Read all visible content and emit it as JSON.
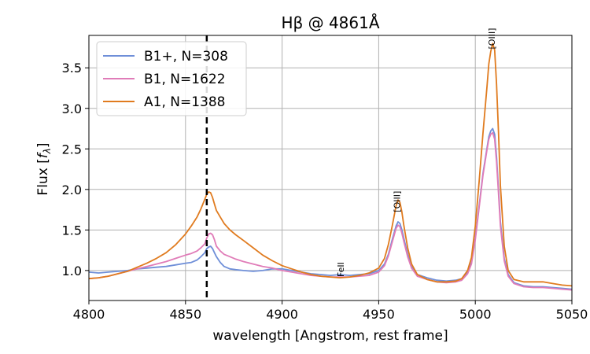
{
  "chart_data": {
    "type": "line",
    "title": "Hβ @ 4861Å",
    "xlabel": "wavelength [Angstrom, rest frame]",
    "ylabel": "Flux [f_λ]",
    "xlim": [
      4800,
      5050
    ],
    "ylim": [
      0.63,
      3.9
    ],
    "xticks": [
      4800,
      4850,
      4900,
      4950,
      5000,
      5050
    ],
    "yticks": [
      1.0,
      1.5,
      2.0,
      2.5,
      3.0,
      3.5
    ],
    "grid": true,
    "legend_position": "top-left",
    "reference_line": {
      "x": 4861,
      "style": "dashed",
      "color": "#000000"
    },
    "annotations": [
      {
        "text": "FeII",
        "x": 4932,
        "y": 0.92
      },
      {
        "text": "[OIII]",
        "x": 4961,
        "y": 1.72
      },
      {
        "text": "[OIII]",
        "x": 5010,
        "y": 3.73
      }
    ],
    "series": [
      {
        "name": "B1+, N=308",
        "color": "#6f8fd8",
        "x": [
          4800,
          4805,
          4810,
          4815,
          4820,
          4825,
          4830,
          4835,
          4840,
          4845,
          4850,
          4853,
          4856,
          4858,
          4860,
          4861,
          4862,
          4863,
          4864,
          4865,
          4866,
          4868,
          4870,
          4873,
          4876,
          4880,
          4885,
          4890,
          4895,
          4900,
          4905,
          4910,
          4915,
          4920,
          4925,
          4930,
          4935,
          4940,
          4945,
          4950,
          4953,
          4955,
          4957,
          4959,
          4960,
          4961,
          4962,
          4963,
          4965,
          4967,
          4970,
          4975,
          4980,
          4985,
          4990,
          4993,
          4996,
          4998,
          5000,
          5002,
          5004,
          5006,
          5007,
          5008,
          5009,
          5010,
          5011,
          5012,
          5013,
          5015,
          5017,
          5020,
          5025,
          5030,
          5035,
          5040,
          5045,
          5050
        ],
        "values": [
          0.98,
          0.97,
          0.98,
          0.99,
          1.0,
          1.02,
          1.03,
          1.04,
          1.05,
          1.07,
          1.09,
          1.1,
          1.13,
          1.17,
          1.22,
          1.27,
          1.29,
          1.3,
          1.27,
          1.22,
          1.17,
          1.1,
          1.05,
          1.02,
          1.01,
          1.0,
          0.99,
          1.0,
          1.02,
          1.02,
          1.0,
          0.98,
          0.96,
          0.95,
          0.94,
          0.95,
          0.94,
          0.95,
          0.96,
          1.0,
          1.08,
          1.2,
          1.38,
          1.55,
          1.6,
          1.58,
          1.5,
          1.4,
          1.2,
          1.05,
          0.95,
          0.91,
          0.88,
          0.87,
          0.88,
          0.9,
          0.98,
          1.1,
          1.4,
          1.8,
          2.2,
          2.5,
          2.65,
          2.72,
          2.75,
          2.68,
          2.4,
          2.0,
          1.6,
          1.15,
          0.95,
          0.85,
          0.81,
          0.8,
          0.8,
          0.79,
          0.78,
          0.77
        ]
      },
      {
        "name": "B1, N=1622",
        "color": "#e07cb8",
        "x": [
          4800,
          4805,
          4810,
          4815,
          4820,
          4825,
          4830,
          4835,
          4840,
          4845,
          4850,
          4853,
          4856,
          4858,
          4860,
          4861,
          4862,
          4863,
          4864,
          4865,
          4866,
          4868,
          4870,
          4873,
          4876,
          4880,
          4885,
          4890,
          4895,
          4900,
          4905,
          4910,
          4915,
          4920,
          4925,
          4930,
          4935,
          4940,
          4945,
          4950,
          4953,
          4955,
          4957,
          4959,
          4960,
          4961,
          4962,
          4963,
          4965,
          4967,
          4970,
          4975,
          4980,
          4985,
          4990,
          4993,
          4996,
          4998,
          5000,
          5002,
          5004,
          5006,
          5007,
          5008,
          5009,
          5010,
          5011,
          5012,
          5013,
          5015,
          5017,
          5020,
          5025,
          5030,
          5035,
          5040,
          5045,
          5050
        ],
        "values": [
          0.9,
          0.91,
          0.93,
          0.96,
          0.99,
          1.02,
          1.05,
          1.08,
          1.11,
          1.15,
          1.19,
          1.21,
          1.24,
          1.28,
          1.33,
          1.4,
          1.45,
          1.46,
          1.44,
          1.38,
          1.3,
          1.24,
          1.2,
          1.17,
          1.14,
          1.11,
          1.08,
          1.05,
          1.03,
          1.0,
          0.98,
          0.96,
          0.94,
          0.93,
          0.92,
          0.92,
          0.92,
          0.93,
          0.94,
          0.98,
          1.06,
          1.18,
          1.35,
          1.52,
          1.56,
          1.54,
          1.46,
          1.36,
          1.17,
          1.03,
          0.93,
          0.89,
          0.86,
          0.85,
          0.86,
          0.88,
          0.96,
          1.08,
          1.38,
          1.78,
          2.18,
          2.48,
          2.62,
          2.68,
          2.7,
          2.62,
          2.34,
          1.95,
          1.55,
          1.12,
          0.93,
          0.84,
          0.8,
          0.79,
          0.79,
          0.78,
          0.77,
          0.76
        ]
      },
      {
        "name": "A1, N=1388",
        "color": "#e07b1f",
        "x": [
          4800,
          4805,
          4810,
          4815,
          4820,
          4825,
          4830,
          4835,
          4840,
          4845,
          4850,
          4853,
          4856,
          4858,
          4860,
          4861,
          4862,
          4863,
          4864,
          4865,
          4866,
          4868,
          4870,
          4873,
          4876,
          4880,
          4885,
          4890,
          4895,
          4900,
          4905,
          4910,
          4915,
          4920,
          4925,
          4930,
          4935,
          4940,
          4945,
          4950,
          4953,
          4955,
          4957,
          4959,
          4960,
          4961,
          4962,
          4963,
          4965,
          4967,
          4970,
          4975,
          4980,
          4985,
          4990,
          4993,
          4996,
          4998,
          5000,
          5002,
          5004,
          5006,
          5007,
          5008,
          5009,
          5010,
          5011,
          5012,
          5013,
          5015,
          5017,
          5020,
          5025,
          5030,
          5035,
          5040,
          5045,
          5050
        ],
        "values": [
          0.9,
          0.91,
          0.93,
          0.96,
          0.99,
          1.04,
          1.09,
          1.15,
          1.22,
          1.32,
          1.45,
          1.55,
          1.66,
          1.76,
          1.88,
          1.94,
          1.97,
          1.96,
          1.9,
          1.82,
          1.74,
          1.66,
          1.58,
          1.5,
          1.44,
          1.37,
          1.28,
          1.19,
          1.12,
          1.06,
          1.02,
          0.98,
          0.95,
          0.93,
          0.92,
          0.91,
          0.92,
          0.94,
          0.97,
          1.03,
          1.15,
          1.32,
          1.55,
          1.8,
          1.87,
          1.84,
          1.72,
          1.56,
          1.28,
          1.08,
          0.95,
          0.89,
          0.86,
          0.86,
          0.87,
          0.9,
          1.0,
          1.16,
          1.55,
          2.1,
          2.7,
          3.25,
          3.55,
          3.7,
          3.8,
          3.72,
          3.3,
          2.7,
          2.05,
          1.3,
          1.0,
          0.89,
          0.86,
          0.86,
          0.86,
          0.84,
          0.82,
          0.81
        ]
      }
    ]
  }
}
